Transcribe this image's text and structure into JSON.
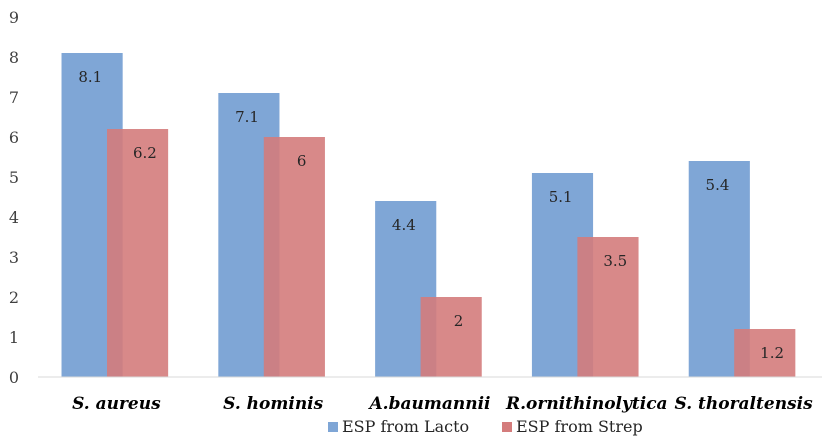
{
  "chart_data": {
    "type": "bar",
    "categories": [
      "S. aureus",
      "S. hominis",
      "A.baumannii",
      "R.ornithinolytica",
      "S. thoraltensis"
    ],
    "series": [
      {
        "name": "ESP from Lacto",
        "values": [
          8.1,
          7.1,
          4.4,
          5.1,
          5.4
        ],
        "color": "#7fa6d6"
      },
      {
        "name": "ESP from Strep",
        "values": [
          6.2,
          6,
          2,
          3.5,
          1.2
        ],
        "color": "#d47c7c"
      }
    ],
    "ylim": [
      0,
      9
    ],
    "yticks": [
      0,
      1,
      2,
      3,
      4,
      5,
      6,
      7,
      8,
      9
    ],
    "grid": false,
    "legend": "bottom",
    "title": "",
    "xlabel": "",
    "ylabel": ""
  }
}
